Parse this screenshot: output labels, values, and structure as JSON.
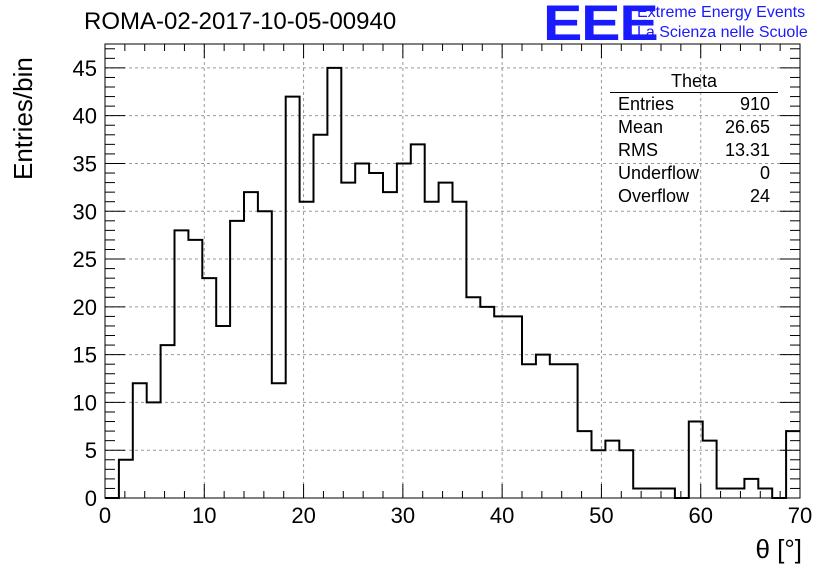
{
  "logo": {
    "mark": "EEE",
    "line1": "Extreme Energy Events",
    "line2": "La Scienza nelle Scuole"
  },
  "stats": {
    "title": "Theta",
    "rows": [
      {
        "label": "Entries",
        "value": "910"
      },
      {
        "label": "Mean",
        "value": "26.65"
      },
      {
        "label": "RMS",
        "value": "13.31"
      },
      {
        "label": "Underflow",
        "value": "0"
      },
      {
        "label": "Overflow",
        "value": "24"
      }
    ]
  },
  "chart_data": {
    "type": "bar",
    "title": "ROMA-02-2017-10-05-00940",
    "xlabel": "θ [°]",
    "ylabel": "Entries/bin",
    "xlim": [
      0,
      70
    ],
    "ylim": [
      0,
      47.5
    ],
    "grid": true,
    "bin_width": 1.4,
    "bin_start": 0,
    "x_ticks": [
      0,
      10,
      20,
      30,
      40,
      50,
      60,
      70
    ],
    "y_ticks": [
      0,
      5,
      10,
      15,
      20,
      25,
      30,
      35,
      40,
      45
    ],
    "values": [
      0,
      4,
      12,
      10,
      16,
      28,
      27,
      23,
      18,
      29,
      32,
      30,
      12,
      42,
      31,
      38,
      45,
      33,
      35,
      34,
      32,
      35,
      37,
      31,
      33,
      31,
      21,
      20,
      19,
      19,
      14,
      15,
      14,
      14,
      7,
      5,
      6,
      5,
      1,
      1,
      1,
      0,
      8,
      6,
      1,
      1,
      2,
      1,
      0,
      7
    ]
  }
}
